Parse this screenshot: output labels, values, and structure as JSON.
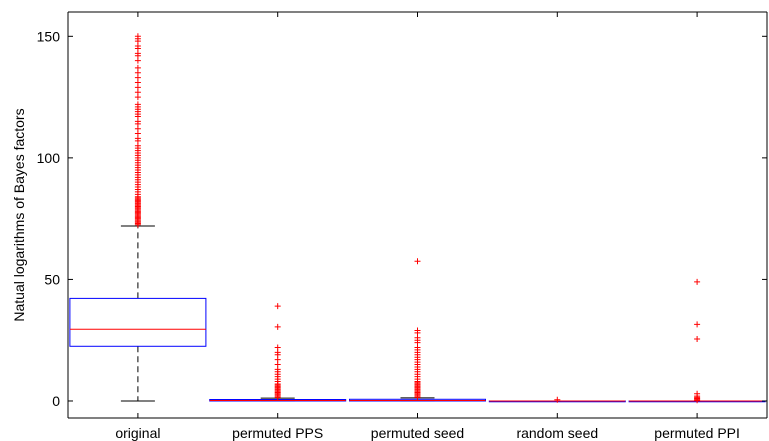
{
  "chart_data": {
    "type": "box",
    "title": "",
    "xlabel": "",
    "ylabel": "Natual logarithms of Bayes factors",
    "ylim": [
      -7,
      160
    ],
    "yticks": [
      0,
      50,
      100,
      150
    ],
    "categories": [
      "original",
      "permuted PPS",
      "permuted seed",
      "random seed",
      "permuted PPI"
    ],
    "box_color": "#0000ff",
    "median_color": "#ff0000",
    "outlier_color": "#ff0000",
    "whisker_color": "#000000",
    "boxes": [
      {
        "category": "original",
        "lower_whisker": 0,
        "q1": 22.5,
        "median": 29.5,
        "q3": 42.2,
        "upper_whisker": 72,
        "outliers": [
          72.5,
          73,
          73.5,
          74,
          74.5,
          75,
          75.5,
          76,
          76.5,
          77,
          77.5,
          78,
          78.5,
          79,
          79.5,
          80,
          80.5,
          81,
          81.5,
          82,
          82.5,
          83,
          83.5,
          84,
          85,
          86,
          87,
          88,
          89,
          90,
          91,
          92,
          93,
          94,
          95,
          96,
          97,
          98,
          99,
          100,
          101,
          102,
          103,
          104,
          105,
          107,
          108,
          110,
          112,
          114,
          115,
          117,
          118,
          119,
          120,
          121,
          122,
          125,
          127,
          129,
          131,
          133,
          135,
          137,
          140,
          142,
          143,
          145,
          146,
          148,
          149,
          150
        ]
      },
      {
        "category": "permuted PPS",
        "lower_whisker": 0,
        "q1": 0,
        "median": 0.2,
        "q3": 0.6,
        "upper_whisker": 1.2,
        "outliers": [
          1.5,
          2,
          2.5,
          3,
          3.5,
          4,
          4.5,
          5,
          5.5,
          6,
          6.5,
          7,
          8,
          9,
          10,
          11,
          12,
          13,
          15,
          17,
          19,
          20,
          22,
          30.5,
          39
        ]
      },
      {
        "category": "permuted seed",
        "lower_whisker": 0,
        "q1": 0,
        "median": 0.2,
        "q3": 0.7,
        "upper_whisker": 1.3,
        "outliers": [
          1.5,
          2,
          2.5,
          3,
          3.5,
          4,
          4.5,
          5,
          5.5,
          6,
          6.5,
          7,
          7.5,
          8,
          9,
          10,
          11,
          12,
          13,
          14,
          15,
          16,
          17,
          18,
          19,
          20,
          21,
          22,
          24,
          25,
          26,
          28,
          29,
          57.5
        ]
      },
      {
        "category": "random seed",
        "lower_whisker": 0,
        "q1": 0,
        "median": 0,
        "q3": 0,
        "upper_whisker": 0,
        "outliers": [
          0.5
        ]
      },
      {
        "category": "permuted PPI",
        "lower_whisker": 0,
        "q1": 0,
        "median": 0,
        "q3": 0,
        "upper_whisker": 0,
        "outliers": [
          0.3,
          0.7,
          1,
          1.5,
          2,
          3,
          25.5,
          31.5,
          49
        ]
      }
    ]
  }
}
